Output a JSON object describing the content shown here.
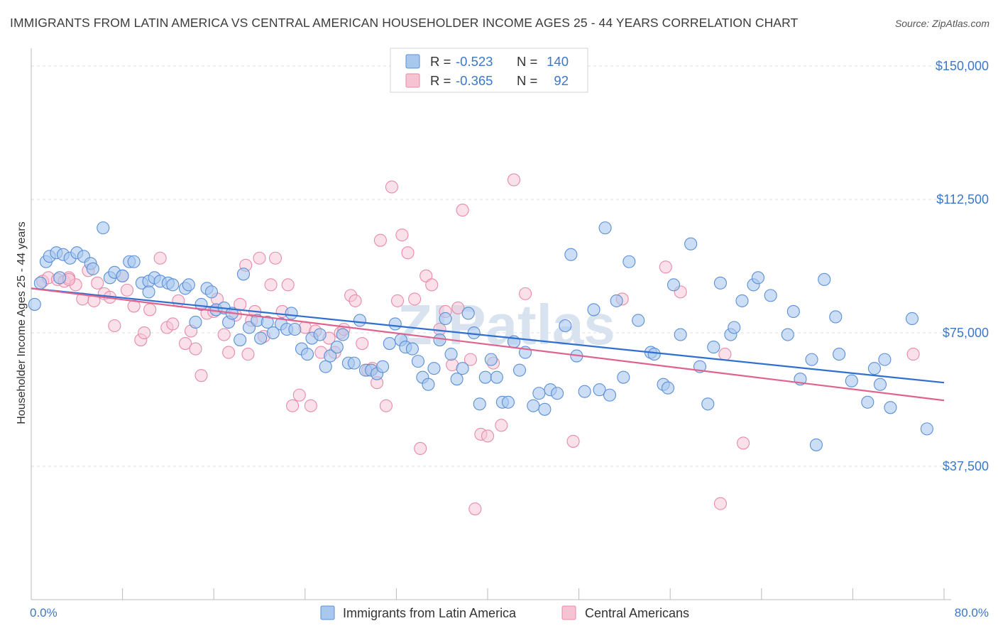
{
  "title": "IMMIGRANTS FROM LATIN AMERICA VS CENTRAL AMERICAN HOUSEHOLDER INCOME AGES 25 - 44 YEARS CORRELATION CHART",
  "source": "Source: ZipAtlas.com",
  "watermark": "ZIPatlas",
  "colors": {
    "blue_fill": "#a9c8ee",
    "blue_stroke": "#5b8fd6",
    "blue_line": "#2e6fd0",
    "pink_fill": "#f6c3d3",
    "pink_stroke": "#e88aa8",
    "pink_line": "#e0628f",
    "tick_text": "#3b78c9",
    "grid": "#dddddd"
  },
  "legend": {
    "r_label": "R =",
    "n_label": "N =",
    "rows": [
      {
        "r": "-0.523",
        "n": "140"
      },
      {
        "r": "-0.365",
        "n": "92"
      }
    ]
  },
  "chart_data": {
    "type": "scatter",
    "title": "IMMIGRANTS FROM LATIN AMERICA VS CENTRAL AMERICAN HOUSEHOLDER INCOME AGES 25 - 44 YEARS CORRELATION CHART",
    "xlabel": "",
    "ylabel": "Householder Income Ages 25 - 44 years",
    "xlim": [
      0,
      80
    ],
    "ylim": [
      0,
      153000
    ],
    "x_tick_labels": [
      "0.0%",
      "80.0%"
    ],
    "y_ticks": [
      37500,
      75000,
      112500,
      150000
    ],
    "y_tick_labels": [
      "$37,500",
      "$75,000",
      "$112,500",
      "$150,000"
    ],
    "grid": true,
    "legend_position": "top-center",
    "series": [
      {
        "name": "Immigrants from Latin America",
        "color": "#a9c8ee",
        "trend": {
          "x": [
            0,
            80
          ],
          "y": [
            87500,
            61000
          ]
        },
        "points": [
          [
            0.3,
            83000
          ],
          [
            0.8,
            89000
          ],
          [
            1.3,
            95000
          ],
          [
            1.6,
            96500
          ],
          [
            2.2,
            97500
          ],
          [
            2.8,
            97000
          ],
          [
            3.4,
            96000
          ],
          [
            4.0,
            97500
          ],
          [
            4.6,
            96500
          ],
          [
            5.2,
            94500
          ],
          [
            5.4,
            93000
          ],
          [
            6.3,
            104500
          ],
          [
            6.9,
            90500
          ],
          [
            7.3,
            92000
          ],
          [
            8.0,
            91000
          ],
          [
            8.6,
            95000
          ],
          [
            9.0,
            95000
          ],
          [
            9.7,
            89000
          ],
          [
            10.3,
            89500
          ],
          [
            10.3,
            86500
          ],
          [
            10.8,
            90500
          ],
          [
            11.3,
            89500
          ],
          [
            12.0,
            89000
          ],
          [
            12.4,
            88500
          ],
          [
            13.5,
            87500
          ],
          [
            13.8,
            88500
          ],
          [
            14.4,
            78000
          ],
          [
            14.9,
            83000
          ],
          [
            15.4,
            87500
          ],
          [
            15.8,
            86500
          ],
          [
            16.2,
            81500
          ],
          [
            16.9,
            82000
          ],
          [
            17.3,
            78000
          ],
          [
            17.6,
            80500
          ],
          [
            18.3,
            73000
          ],
          [
            18.6,
            91500
          ],
          [
            19.1,
            76500
          ],
          [
            19.8,
            78500
          ],
          [
            20.1,
            73500
          ],
          [
            20.7,
            78000
          ],
          [
            21.2,
            75000
          ],
          [
            21.9,
            77500
          ],
          [
            22.4,
            76000
          ],
          [
            22.8,
            80500
          ],
          [
            23.1,
            76000
          ],
          [
            23.7,
            70500
          ],
          [
            24.2,
            69000
          ],
          [
            24.6,
            73500
          ],
          [
            25.3,
            74500
          ],
          [
            25.8,
            65500
          ],
          [
            26.2,
            68500
          ],
          [
            26.8,
            71000
          ],
          [
            27.3,
            74500
          ],
          [
            27.8,
            66500
          ],
          [
            28.3,
            66500
          ],
          [
            28.8,
            78500
          ],
          [
            29.3,
            64500
          ],
          [
            29.8,
            64500
          ],
          [
            30.3,
            63500
          ],
          [
            30.8,
            65500
          ],
          [
            31.4,
            72000
          ],
          [
            31.9,
            77500
          ],
          [
            32.4,
            73000
          ],
          [
            32.8,
            71000
          ],
          [
            33.4,
            70500
          ],
          [
            33.9,
            67000
          ],
          [
            34.3,
            62500
          ],
          [
            34.8,
            60500
          ],
          [
            35.3,
            65000
          ],
          [
            35.8,
            73000
          ],
          [
            36.3,
            79000
          ],
          [
            36.8,
            69000
          ],
          [
            37.3,
            62000
          ],
          [
            37.8,
            65000
          ],
          [
            38.3,
            80500
          ],
          [
            38.8,
            75000
          ],
          [
            39.3,
            55000
          ],
          [
            39.8,
            62500
          ],
          [
            40.3,
            67500
          ],
          [
            40.8,
            62500
          ],
          [
            41.3,
            55500
          ],
          [
            41.8,
            55500
          ],
          [
            42.3,
            72500
          ],
          [
            42.8,
            64500
          ],
          [
            43.3,
            69500
          ],
          [
            44.0,
            54500
          ],
          [
            44.5,
            58000
          ],
          [
            45.0,
            53500
          ],
          [
            45.5,
            59000
          ],
          [
            46.1,
            58000
          ],
          [
            46.8,
            77000
          ],
          [
            47.3,
            97000
          ],
          [
            47.8,
            68500
          ],
          [
            48.5,
            58500
          ],
          [
            49.3,
            81500
          ],
          [
            49.8,
            59000
          ],
          [
            50.3,
            104500
          ],
          [
            50.7,
            57500
          ],
          [
            51.3,
            84000
          ],
          [
            51.9,
            62500
          ],
          [
            52.4,
            95000
          ],
          [
            53.2,
            78500
          ],
          [
            54.3,
            69500
          ],
          [
            54.6,
            69000
          ],
          [
            55.4,
            60500
          ],
          [
            55.8,
            59500
          ],
          [
            56.3,
            88500
          ],
          [
            56.9,
            74500
          ],
          [
            57.8,
            100000
          ],
          [
            58.6,
            65500
          ],
          [
            59.3,
            55000
          ],
          [
            59.8,
            71000
          ],
          [
            60.4,
            89000
          ],
          [
            61.3,
            74500
          ],
          [
            61.6,
            76500
          ],
          [
            62.3,
            84000
          ],
          [
            63.3,
            88500
          ],
          [
            63.7,
            90500
          ],
          [
            64.8,
            85500
          ],
          [
            66.3,
            74500
          ],
          [
            66.8,
            81000
          ],
          [
            67.4,
            62000
          ],
          [
            68.4,
            67500
          ],
          [
            68.8,
            43500
          ],
          [
            69.5,
            90000
          ],
          [
            70.5,
            79500
          ],
          [
            70.8,
            69000
          ],
          [
            71.9,
            61500
          ],
          [
            73.3,
            55500
          ],
          [
            73.9,
            65000
          ],
          [
            74.4,
            60500
          ],
          [
            74.8,
            67500
          ],
          [
            75.3,
            54000
          ],
          [
            77.2,
            79000
          ],
          [
            78.5,
            48000
          ],
          [
            2.5,
            90500
          ]
        ]
      },
      {
        "name": "Central Americans",
        "color": "#f6c3d3",
        "trend": {
          "x": [
            0,
            80
          ],
          "y": [
            87500,
            56000
          ]
        },
        "points": [
          [
            1.0,
            89500
          ],
          [
            1.5,
            90500
          ],
          [
            2.3,
            90000
          ],
          [
            2.9,
            89500
          ],
          [
            3.3,
            90500
          ],
          [
            3.9,
            88500
          ],
          [
            4.5,
            84500
          ],
          [
            5.0,
            92500
          ],
          [
            5.5,
            84000
          ],
          [
            5.8,
            89000
          ],
          [
            6.4,
            86000
          ],
          [
            6.9,
            85000
          ],
          [
            7.3,
            77000
          ],
          [
            8.0,
            91000
          ],
          [
            8.4,
            87000
          ],
          [
            9.0,
            82500
          ],
          [
            9.6,
            73000
          ],
          [
            9.9,
            75000
          ],
          [
            10.4,
            81500
          ],
          [
            11.3,
            96000
          ],
          [
            11.9,
            76500
          ],
          [
            12.4,
            77500
          ],
          [
            12.9,
            84000
          ],
          [
            13.5,
            72000
          ],
          [
            14.0,
            75500
          ],
          [
            14.4,
            70500
          ],
          [
            14.9,
            63000
          ],
          [
            15.4,
            80500
          ],
          [
            16.0,
            81000
          ],
          [
            16.3,
            84500
          ],
          [
            16.9,
            74500
          ],
          [
            17.3,
            69500
          ],
          [
            17.9,
            80000
          ],
          [
            18.3,
            83000
          ],
          [
            18.8,
            94000
          ],
          [
            19.0,
            69000
          ],
          [
            19.3,
            78500
          ],
          [
            19.6,
            81000
          ],
          [
            20.0,
            96000
          ],
          [
            20.4,
            74000
          ],
          [
            21.0,
            88500
          ],
          [
            21.4,
            96000
          ],
          [
            22.0,
            81000
          ],
          [
            22.5,
            88500
          ],
          [
            22.9,
            54500
          ],
          [
            23.5,
            57500
          ],
          [
            24.0,
            76500
          ],
          [
            24.5,
            54500
          ],
          [
            24.9,
            75500
          ],
          [
            25.4,
            69500
          ],
          [
            26.1,
            73500
          ],
          [
            26.6,
            69500
          ],
          [
            27.1,
            75000
          ],
          [
            27.4,
            76000
          ],
          [
            28.0,
            85500
          ],
          [
            28.4,
            84000
          ],
          [
            29.0,
            72000
          ],
          [
            29.5,
            64500
          ],
          [
            29.9,
            65000
          ],
          [
            30.3,
            61000
          ],
          [
            30.6,
            101000
          ],
          [
            31.1,
            54500
          ],
          [
            31.6,
            116000
          ],
          [
            32.1,
            84000
          ],
          [
            32.5,
            102500
          ],
          [
            33.0,
            97500
          ],
          [
            33.6,
            84500
          ],
          [
            34.1,
            42500
          ],
          [
            34.6,
            91000
          ],
          [
            35.1,
            88500
          ],
          [
            35.8,
            76000
          ],
          [
            36.3,
            81000
          ],
          [
            36.9,
            66000
          ],
          [
            37.4,
            82000
          ],
          [
            37.8,
            109500
          ],
          [
            38.5,
            67500
          ],
          [
            38.9,
            25500
          ],
          [
            39.4,
            46500
          ],
          [
            40.0,
            46000
          ],
          [
            40.5,
            66500
          ],
          [
            41.2,
            49000
          ],
          [
            42.3,
            118000
          ],
          [
            43.3,
            86000
          ],
          [
            47.5,
            44500
          ],
          [
            51.8,
            84500
          ],
          [
            55.6,
            93500
          ],
          [
            56.9,
            86500
          ],
          [
            60.4,
            27000
          ],
          [
            60.8,
            69000
          ],
          [
            62.4,
            44000
          ],
          [
            77.3,
            69000
          ],
          [
            3.3,
            90000
          ]
        ]
      }
    ]
  },
  "bottom_legend": [
    "Immigrants from Latin America",
    "Central Americans"
  ]
}
